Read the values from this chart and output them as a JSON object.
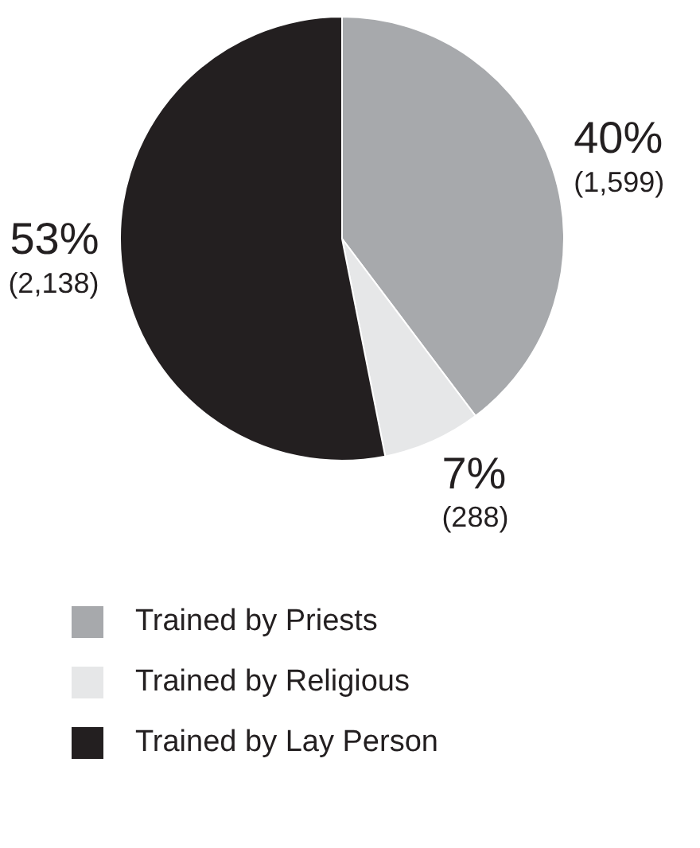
{
  "chart_data": {
    "type": "pie",
    "categories": [
      "Trained by Priests",
      "Trained by Religious",
      "Trained by Lay Person"
    ],
    "values": [
      1599,
      288,
      2138
    ],
    "colors": [
      "#a7a9ac",
      "#e6e7e8",
      "#231f20"
    ],
    "value_labels": [
      "40%\n(1,599)",
      "7%\n(288)",
      "53%\n(2,138)"
    ],
    "legend": "bottom"
  }
}
